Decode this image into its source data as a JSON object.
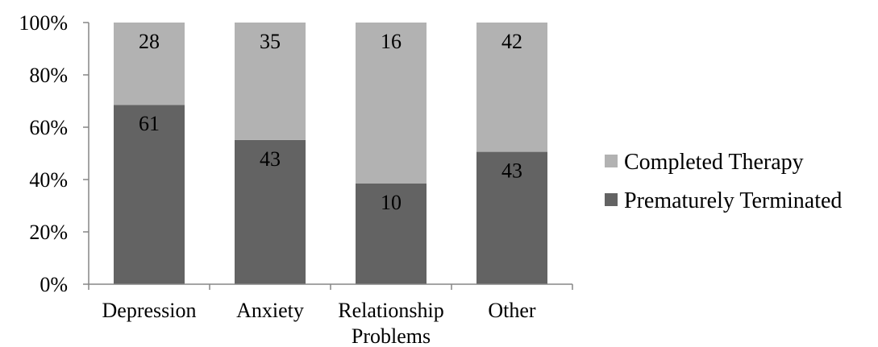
{
  "chart_data": {
    "type": "bar",
    "stacked": true,
    "percent_stacked": true,
    "categories": [
      [
        "Depression"
      ],
      [
        "Anxiety"
      ],
      [
        "Relationship",
        "Problems"
      ],
      [
        "Other"
      ]
    ],
    "series": [
      {
        "name": "Prematurely Terminated",
        "values": [
          61,
          43,
          10,
          43
        ],
        "color": "#636363"
      },
      {
        "name": "Completed Therapy",
        "values": [
          28,
          35,
          16,
          42
        ],
        "color": "#b2b2b2"
      }
    ],
    "ylim": [
      0,
      100
    ],
    "yticks": [
      "0%",
      "20%",
      "40%",
      "60%",
      "80%",
      "100%"
    ],
    "grid": false,
    "legend_position": "right",
    "legend_order": [
      "Completed Therapy",
      "Prematurely Terminated"
    ]
  }
}
